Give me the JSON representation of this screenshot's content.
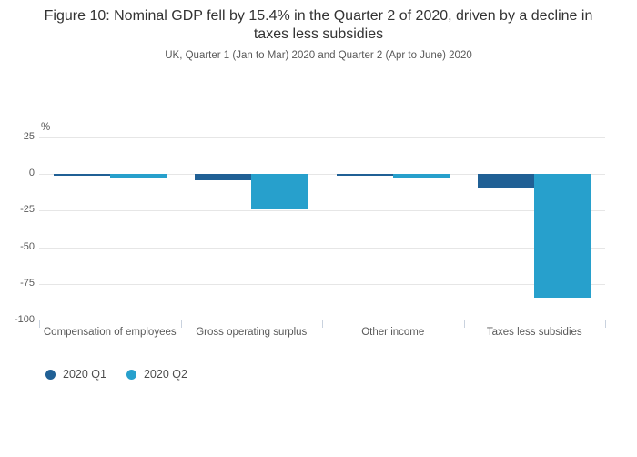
{
  "chart_data": {
    "type": "bar",
    "title": "Figure 10: Nominal GDP fell by 15.4% in the Quarter 2 of 2020, driven by a decline in taxes less subsidies",
    "subtitle": "UK, Quarter 1 (Jan to Mar) 2020 and Quarter 2 (Apr to June) 2020",
    "unit_label": "%",
    "categories": [
      "Compensation of employees",
      "Gross operating surplus",
      "Other income",
      "Taxes less subsidies"
    ],
    "series": [
      {
        "name": "2020 Q1",
        "color": "#206095",
        "values": [
          -1.0,
          -4.2,
          -1.0,
          -9.0
        ]
      },
      {
        "name": "2020 Q2",
        "color": "#27A0CC",
        "values": [
          -3.0,
          -24.2,
          -3.0,
          -84.2
        ]
      }
    ],
    "xlabel": "",
    "ylabel": "%",
    "ylim": [
      -100,
      25
    ],
    "yticks": [
      25,
      0,
      -25,
      -50,
      -75,
      -100
    ],
    "grid": "horizontal",
    "legend_position": "bottom-left"
  }
}
